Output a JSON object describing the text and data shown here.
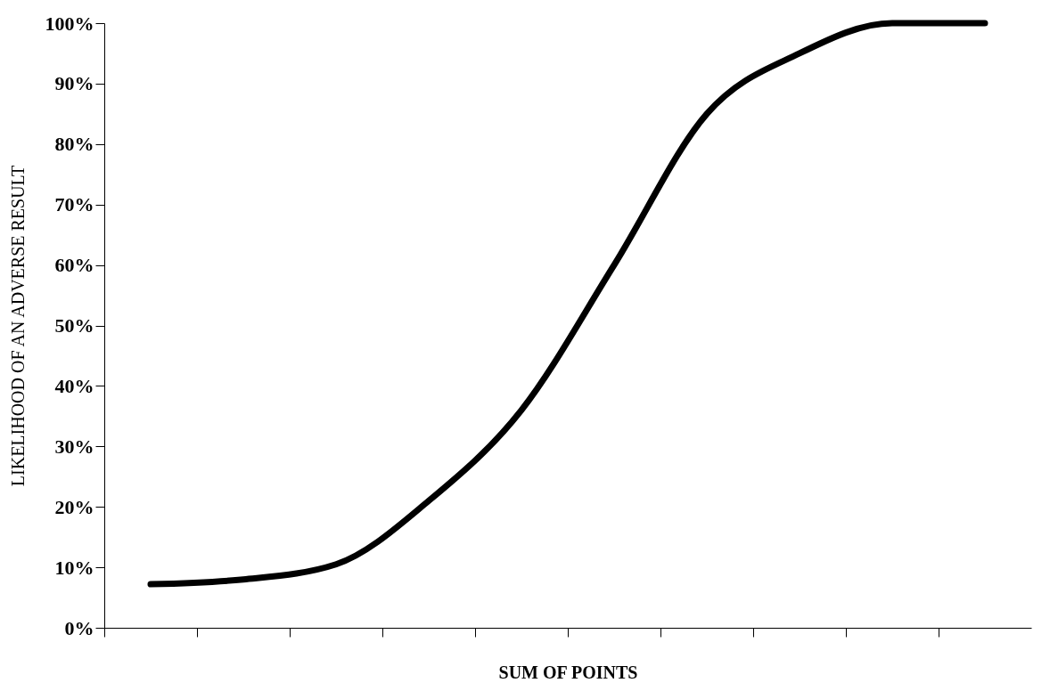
{
  "chart_data": {
    "type": "line",
    "xlabel": "SUM OF POINTS",
    "ylabel": "LIKELIHOOD OF AN ADVERSE RESULT",
    "categories": [
      null,
      null,
      null,
      null,
      null,
      null,
      null,
      null,
      null,
      null
    ],
    "series": [
      {
        "color": "#000000",
        "values": [
          7.2,
          8,
          10.5,
          21,
          36,
          60,
          85,
          95,
          100,
          100
        ]
      }
    ],
    "ylim": [
      0,
      100
    ],
    "yticks": [
      {
        "value": 0,
        "label": "0%"
      },
      {
        "value": 10,
        "label": "10%"
      },
      {
        "value": 20,
        "label": "20%"
      },
      {
        "value": 30,
        "label": "30%"
      },
      {
        "value": 40,
        "label": "40%"
      },
      {
        "value": 50,
        "label": "50%"
      },
      {
        "value": 60,
        "label": "60%"
      },
      {
        "value": 70,
        "label": "70%"
      },
      {
        "value": 80,
        "label": "80%"
      },
      {
        "value": 90,
        "label": "90%"
      },
      {
        "value": 100,
        "label": "100%"
      }
    ],
    "tick_labels": "y",
    "grid": false,
    "line_style": "solid",
    "marker": "none"
  }
}
